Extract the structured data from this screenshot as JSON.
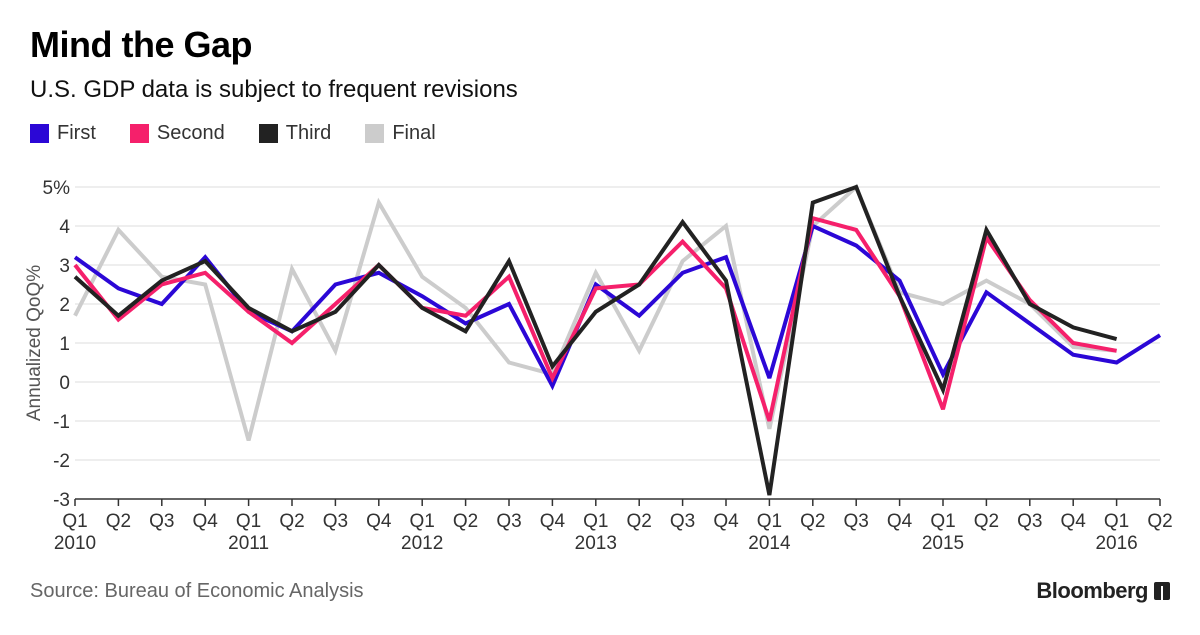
{
  "title": "Mind the Gap",
  "subtitle": "U.S. GDP data is subject to frequent revisions",
  "source": "Source: Bureau of Economic Analysis",
  "brand": "Bloomberg",
  "chart_data": {
    "type": "line",
    "title": "Mind the Gap",
    "subtitle": "U.S. GDP data is subject to frequent revisions",
    "xlabel": "",
    "ylabel": "Annualized QoQ%",
    "ylim": [
      -3,
      5
    ],
    "yticks": [
      -3,
      -2,
      -1,
      0,
      1,
      2,
      3,
      4,
      5
    ],
    "ytick_labels": [
      "-3",
      "-2",
      "-1",
      "0",
      "1",
      "2",
      "3",
      "4",
      "5%"
    ],
    "grid": true,
    "legend_position": "top-left",
    "categories": [
      "Q1",
      "Q2",
      "Q3",
      "Q4",
      "Q1",
      "Q2",
      "Q3",
      "Q4",
      "Q1",
      "Q2",
      "Q3",
      "Q4",
      "Q1",
      "Q2",
      "Q3",
      "Q4",
      "Q1",
      "Q2",
      "Q3",
      "Q4",
      "Q1",
      "Q2",
      "Q3",
      "Q4",
      "Q1",
      "Q2"
    ],
    "year_labels": [
      {
        "index": 0,
        "label": "2010"
      },
      {
        "index": 4,
        "label": "2011"
      },
      {
        "index": 8,
        "label": "2012"
      },
      {
        "index": 12,
        "label": "2013"
      },
      {
        "index": 16,
        "label": "2014"
      },
      {
        "index": 20,
        "label": "2015"
      },
      {
        "index": 24,
        "label": "2016"
      }
    ],
    "series": [
      {
        "name": "First",
        "color": "#2B07D6",
        "values": [
          3.2,
          2.4,
          2.0,
          3.2,
          1.8,
          1.3,
          2.5,
          2.8,
          2.2,
          1.5,
          2.0,
          -0.1,
          2.5,
          1.7,
          2.8,
          3.2,
          0.1,
          4.0,
          3.5,
          2.6,
          0.2,
          2.3,
          1.5,
          0.7,
          0.5,
          1.2
        ]
      },
      {
        "name": "Second",
        "color": "#F5206B",
        "values": [
          3.0,
          1.6,
          2.5,
          2.8,
          1.8,
          1.0,
          2.0,
          3.0,
          1.9,
          1.7,
          2.7,
          0.1,
          2.4,
          2.5,
          3.6,
          2.4,
          -1.0,
          4.2,
          3.9,
          2.2,
          -0.7,
          3.7,
          2.1,
          1.0,
          0.8,
          null
        ]
      },
      {
        "name": "Third",
        "color": "#222222",
        "values": [
          2.7,
          1.7,
          2.6,
          3.1,
          1.9,
          1.3,
          1.8,
          3.0,
          1.9,
          1.3,
          3.1,
          0.4,
          1.8,
          2.5,
          4.1,
          2.6,
          -2.9,
          4.6,
          5.0,
          2.2,
          -0.2,
          3.9,
          2.0,
          1.4,
          1.1,
          null
        ]
      },
      {
        "name": "Final",
        "color": "#CCCCCC",
        "values": [
          1.7,
          3.9,
          2.7,
          2.5,
          -1.5,
          2.9,
          0.8,
          4.6,
          2.7,
          1.9,
          0.5,
          0.2,
          2.8,
          0.8,
          3.1,
          4.0,
          -1.2,
          4.0,
          5.0,
          2.3,
          2.0,
          2.6,
          2.0,
          0.9,
          0.8,
          null
        ]
      }
    ]
  }
}
